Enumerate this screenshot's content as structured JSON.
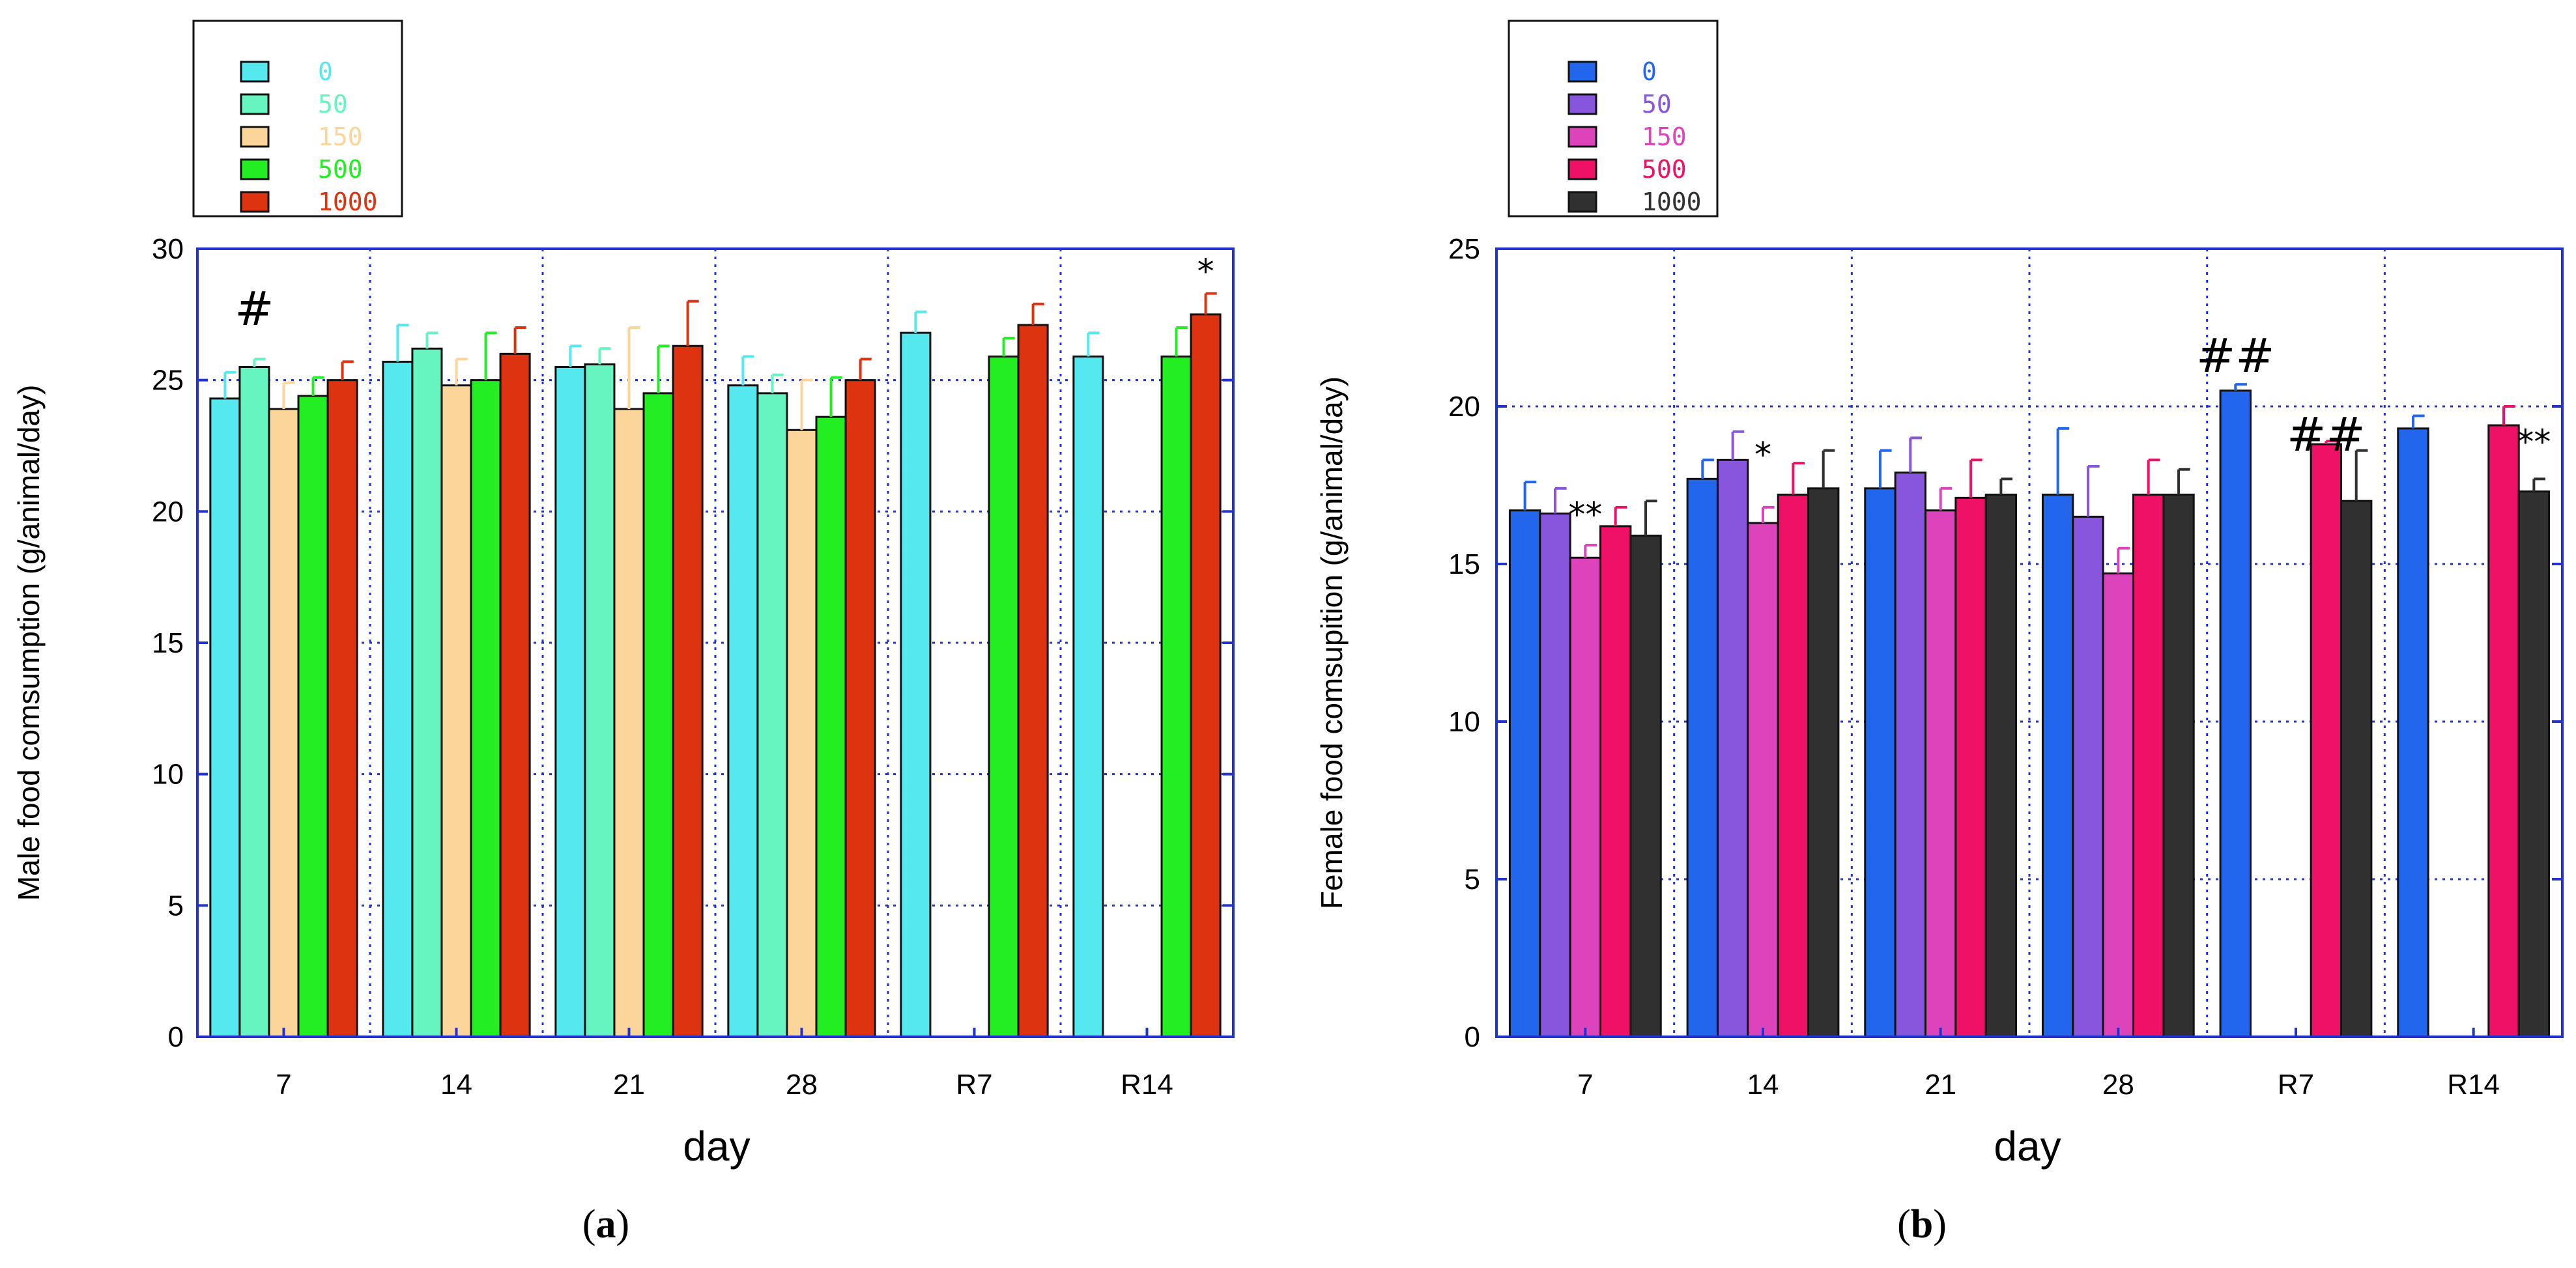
{
  "chart_data": [
    {
      "type": "bar",
      "panel": "a",
      "panel_label": {
        "open": "(",
        "letter": "a",
        "close": ")"
      },
      "xlabel": "day",
      "ylabel": "Male food comsumption (g/animal/day)",
      "ylim": [
        0,
        30
      ],
      "yticks": [
        0,
        5,
        10,
        15,
        20,
        25,
        30
      ],
      "grid": true,
      "legend_position": "top-left, outside plot",
      "categories": [
        "7",
        "14",
        "21",
        "28",
        "R7",
        "R14"
      ],
      "series": [
        {
          "name": "0",
          "color": "#55E8EF",
          "values": [
            24.3,
            25.7,
            25.5,
            24.8,
            26.8,
            25.9
          ],
          "errors": [
            1.0,
            1.4,
            0.8,
            1.1,
            0.8,
            0.9
          ]
        },
        {
          "name": "50",
          "color": "#66F5C0",
          "values": [
            25.5,
            26.2,
            25.6,
            24.5,
            null,
            null
          ],
          "errors": [
            0.3,
            0.6,
            0.6,
            0.7,
            null,
            null
          ]
        },
        {
          "name": "150",
          "color": "#FCD59A",
          "values": [
            23.9,
            24.8,
            23.9,
            23.1,
            null,
            null
          ],
          "errors": [
            1.0,
            1.0,
            3.1,
            1.9,
            null,
            null
          ]
        },
        {
          "name": "500",
          "color": "#22EE22",
          "values": [
            24.4,
            25.0,
            24.5,
            23.6,
            25.9,
            25.9
          ],
          "errors": [
            0.7,
            1.8,
            1.8,
            1.5,
            0.7,
            1.1
          ]
        },
        {
          "name": "1000",
          "color": "#DD3311",
          "values": [
            25.0,
            26.0,
            26.3,
            25.0,
            27.1,
            27.5
          ],
          "errors": [
            0.7,
            1.0,
            1.7,
            0.8,
            0.8,
            0.8
          ]
        }
      ],
      "annotations": [
        {
          "text": "#",
          "category": "7",
          "series": "50",
          "y": 27.1
        },
        {
          "text": "*",
          "category": "R14",
          "series": "1000",
          "y": 28.7
        }
      ]
    },
    {
      "type": "bar",
      "panel": "b",
      "panel_label": {
        "open": "(",
        "letter": "b",
        "close": ")"
      },
      "xlabel": "day",
      "ylabel": "Female food comsupition (g/animal/day)",
      "ylim": [
        0,
        25
      ],
      "yticks": [
        0,
        5,
        10,
        15,
        20,
        25
      ],
      "grid": true,
      "legend_position": "top-left, outside plot",
      "categories": [
        "7",
        "14",
        "21",
        "28",
        "R7",
        "R14"
      ],
      "series": [
        {
          "name": "0",
          "color": "#2266EE",
          "values": [
            16.7,
            17.7,
            17.4,
            17.2,
            20.5,
            19.3
          ],
          "errors": [
            0.9,
            0.6,
            1.2,
            2.1,
            0.2,
            0.4
          ]
        },
        {
          "name": "50",
          "color": "#8855DD",
          "values": [
            16.6,
            18.3,
            17.9,
            16.5,
            null,
            null
          ],
          "errors": [
            0.8,
            0.9,
            1.1,
            1.6,
            null,
            null
          ]
        },
        {
          "name": "150",
          "color": "#DD44BB",
          "values": [
            15.2,
            16.3,
            16.7,
            14.7,
            null,
            null
          ],
          "errors": [
            0.4,
            0.5,
            0.7,
            0.8,
            null,
            null
          ]
        },
        {
          "name": "500",
          "color": "#EE1166",
          "values": [
            16.2,
            17.2,
            17.1,
            17.2,
            18.8,
            19.4
          ],
          "errors": [
            0.6,
            1.0,
            1.2,
            1.1,
            0.1,
            0.6
          ]
        },
        {
          "name": "1000",
          "color": "#303030",
          "values": [
            15.9,
            17.4,
            17.2,
            17.2,
            17.0,
            17.3
          ],
          "errors": [
            1.1,
            1.2,
            0.5,
            0.8,
            1.6,
            0.4
          ]
        }
      ],
      "annotations": [
        {
          "text": "**",
          "category": "7",
          "series": "150",
          "y": 16.2
        },
        {
          "text": "*",
          "category": "14",
          "series": "150",
          "y": 18.1
        },
        {
          "text": "##",
          "category": "R7",
          "series": "0",
          "y": 21.1
        },
        {
          "text": "##",
          "category": "R7",
          "series": "500",
          "y": 18.6
        },
        {
          "text": "**",
          "category": "R14",
          "series": "1000",
          "y": 18.5
        }
      ]
    }
  ]
}
